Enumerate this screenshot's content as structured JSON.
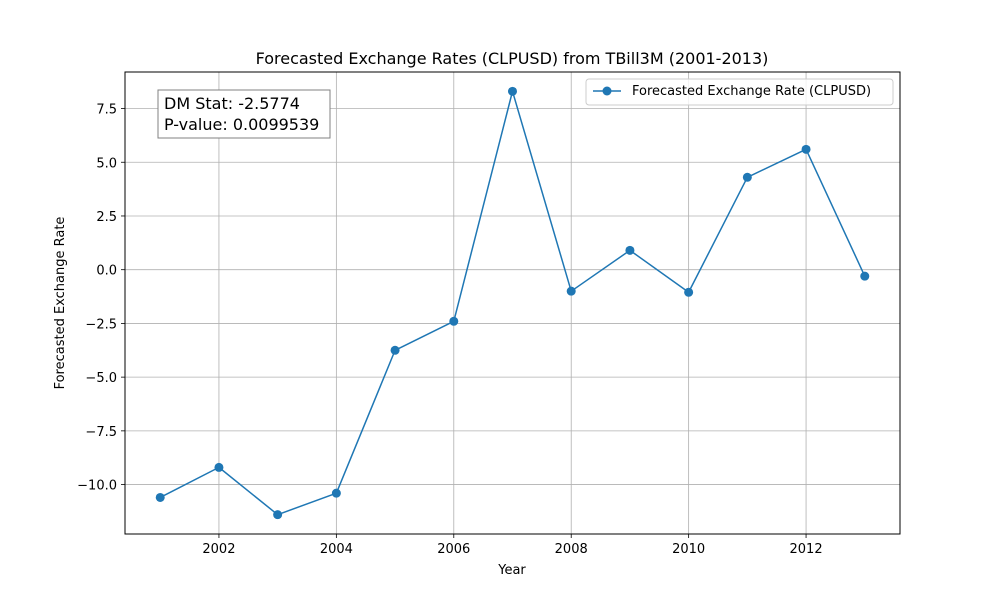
{
  "chart_data": {
    "type": "line",
    "title": "Forecasted Exchange Rates (CLPUSD) from TBill3M (2001-2013)",
    "xlabel": "Year",
    "ylabel": "Forecasted Exchange Rate",
    "xlim": [
      2000.4,
      2013.6
    ],
    "ylim": [
      -12.3,
      9.2
    ],
    "xticks": [
      2002,
      2004,
      2006,
      2008,
      2010,
      2012
    ],
    "yticks": [
      -10.0,
      -7.5,
      -5.0,
      -2.5,
      0.0,
      2.5,
      5.0,
      7.5
    ],
    "xtick_labels": [
      "2002",
      "2004",
      "2006",
      "2008",
      "2010",
      "2012"
    ],
    "ytick_labels": [
      "−10.0",
      "−7.5",
      "−5.0",
      "−2.5",
      "0.0",
      "2.5",
      "5.0",
      "7.5"
    ],
    "grid": true,
    "legend_position": "top-right",
    "series": [
      {
        "name": "Forecasted Exchange Rate (CLPUSD)",
        "color": "#1f77b4",
        "marker": "circle",
        "x": [
          2001,
          2002,
          2003,
          2004,
          2005,
          2006,
          2007,
          2008,
          2009,
          2010,
          2011,
          2012,
          2013
        ],
        "y": [
          -10.6,
          -9.2,
          -11.4,
          -10.4,
          -3.75,
          -2.4,
          8.3,
          -1.0,
          0.9,
          -1.05,
          4.3,
          5.6,
          -0.3
        ]
      }
    ],
    "annotation": {
      "line1": "DM Stat: -2.5774",
      "line2": "P-value: 0.0099539"
    }
  }
}
